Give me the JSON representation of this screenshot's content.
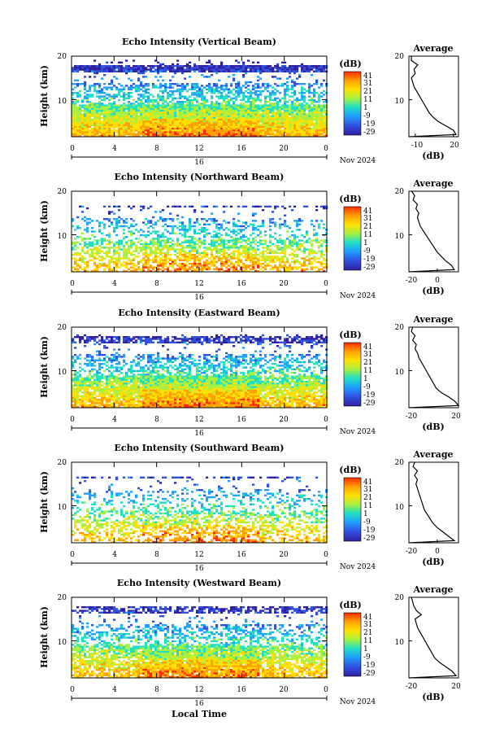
{
  "figure": {
    "x_axis_label": "Local Time",
    "date_label": "Nov 2024",
    "date_day": "16",
    "cbar_unit": "(dB)",
    "cbar_ticks": [
      "41",
      "31",
      "21",
      "11",
      "1",
      "-9",
      "-19",
      "-29"
    ],
    "cbar_colors": [
      "#ff2a00",
      "#ffa000",
      "#ffe000",
      "#a8f040",
      "#20e0c0",
      "#20a0ff",
      "#3050e0",
      "#3020a0"
    ]
  },
  "chart_data": [
    {
      "type": "heatmap",
      "title": "Echo Intensity (Vertical Beam)",
      "xlabel": "Local Time",
      "ylabel": "Height (km)",
      "xlim": [
        0,
        24
      ],
      "ylim": [
        1.5,
        20
      ],
      "x_ticks": [
        "0",
        "4",
        "8",
        "12",
        "16",
        "20",
        "0"
      ],
      "y_ticks": [
        "10",
        "20"
      ],
      "colorbar": {
        "unit": "(dB)",
        "min": -29,
        "max": 41
      },
      "profile": {
        "title": "Average",
        "xlabel": "(dB)",
        "xlim": [
          -15,
          24
        ],
        "x_ticks": [
          "-10",
          "20"
        ],
        "x_tick_values": [
          -10,
          20
        ],
        "heights": [
          1.5,
          2,
          3,
          4,
          5,
          6,
          7,
          8,
          9,
          10,
          11,
          12,
          13,
          14,
          15,
          16,
          17,
          18,
          19,
          20
        ],
        "values": [
          -15,
          22,
          20,
          14,
          8,
          4,
          1,
          -1,
          -3,
          -5,
          -7,
          -9,
          -11,
          -12,
          -13,
          -10,
          -11,
          -8,
          -13,
          -13
        ]
      }
    },
    {
      "type": "heatmap",
      "title": "Echo Intensity (Northward Beam)",
      "xlabel": "Local Time",
      "ylabel": "Height (km)",
      "xlim": [
        0,
        24
      ],
      "ylim": [
        1.5,
        20
      ],
      "x_ticks": [
        "0",
        "4",
        "8",
        "12",
        "16",
        "20",
        "0"
      ],
      "y_ticks": [
        "10",
        "20"
      ],
      "colorbar": {
        "unit": "(dB)",
        "min": -29,
        "max": 41
      },
      "profile": {
        "title": "Average",
        "xlabel": "(dB)",
        "xlim": [
          -20,
          15
        ],
        "x_ticks": [
          "-20",
          "0"
        ],
        "x_tick_values": [
          -20,
          0
        ],
        "heights": [
          1.5,
          2,
          3,
          4,
          5,
          6,
          7,
          8,
          9,
          10,
          11,
          12,
          13,
          14,
          15,
          16,
          17,
          18,
          19,
          20
        ],
        "values": [
          -20,
          12,
          10,
          6,
          3,
          0,
          -2,
          -4,
          -6,
          -8,
          -10,
          -12,
          -13,
          -14,
          -13,
          -15,
          -14,
          -17,
          -16,
          -18
        ]
      }
    },
    {
      "type": "heatmap",
      "title": "Echo Intensity (Eastward Beam)",
      "xlabel": "Local Time",
      "ylabel": "Height (km)",
      "xlim": [
        0,
        24
      ],
      "ylim": [
        1.5,
        20
      ],
      "x_ticks": [
        "0",
        "4",
        "8",
        "12",
        "16",
        "20",
        "0"
      ],
      "y_ticks": [
        "10",
        "20"
      ],
      "colorbar": {
        "unit": "(dB)",
        "min": -29,
        "max": 41
      },
      "profile": {
        "title": "Average",
        "xlabel": "(dB)",
        "xlim": [
          -20,
          20
        ],
        "x_ticks": [
          "-20",
          "20"
        ],
        "x_tick_values": [
          -20,
          20
        ],
        "heights": [
          1.5,
          2,
          3,
          4,
          5,
          6,
          7,
          8,
          9,
          10,
          11,
          12,
          13,
          14,
          15,
          16,
          17,
          18,
          19,
          20
        ],
        "values": [
          -20,
          20,
          17,
          12,
          6,
          2,
          0,
          -2,
          -4,
          -6,
          -8,
          -10,
          -12,
          -13,
          -15,
          -14,
          -17,
          -15,
          -18,
          -17
        ]
      }
    },
    {
      "type": "heatmap",
      "title": "Echo Intensity (Southward Beam)",
      "xlabel": "Local Time",
      "ylabel": "Height (km)",
      "xlim": [
        0,
        24
      ],
      "ylim": [
        1.5,
        20
      ],
      "x_ticks": [
        "0",
        "4",
        "8",
        "12",
        "16",
        "20",
        "0"
      ],
      "y_ticks": [
        "10",
        "20"
      ],
      "colorbar": {
        "unit": "(dB)",
        "min": -29,
        "max": 41
      },
      "profile": {
        "title": "Average",
        "xlabel": "(dB)",
        "xlim": [
          -20,
          15
        ],
        "x_ticks": [
          "-20",
          "0"
        ],
        "x_tick_values": [
          -20,
          0
        ],
        "heights": [
          1.5,
          2,
          3,
          4,
          5,
          6,
          7,
          8,
          9,
          10,
          11,
          12,
          13,
          14,
          15,
          16,
          17,
          18,
          19,
          20
        ],
        "values": [
          -20,
          12,
          8,
          4,
          0,
          -3,
          -5,
          -7,
          -9,
          -10,
          -11,
          -12,
          -13,
          -14,
          -15,
          -14,
          -16,
          -14,
          -17,
          -16
        ]
      }
    },
    {
      "type": "heatmap",
      "title": "Echo Intensity (Westward Beam)",
      "xlabel": "Local Time",
      "ylabel": "Height (km)",
      "xlim": [
        0,
        24
      ],
      "ylim": [
        1.5,
        20
      ],
      "x_ticks": [
        "0",
        "4",
        "8",
        "12",
        "16",
        "20",
        "0"
      ],
      "y_ticks": [
        "10",
        "20"
      ],
      "colorbar": {
        "unit": "(dB)",
        "min": -29,
        "max": 41
      },
      "profile": {
        "title": "Average",
        "xlabel": "(dB)",
        "xlim": [
          -20,
          20
        ],
        "x_ticks": [
          "-20",
          "20"
        ],
        "x_tick_values": [
          -20,
          20
        ],
        "heights": [
          1.5,
          2,
          3,
          4,
          5,
          6,
          7,
          8,
          9,
          10,
          11,
          12,
          13,
          14,
          15,
          16,
          17,
          18,
          19,
          20
        ],
        "values": [
          -20,
          18,
          15,
          10,
          5,
          1,
          -1,
          -3,
          -5,
          -7,
          -9,
          -11,
          -13,
          -14,
          -15,
          -10,
          -14,
          -16,
          -17,
          -18
        ]
      }
    }
  ]
}
